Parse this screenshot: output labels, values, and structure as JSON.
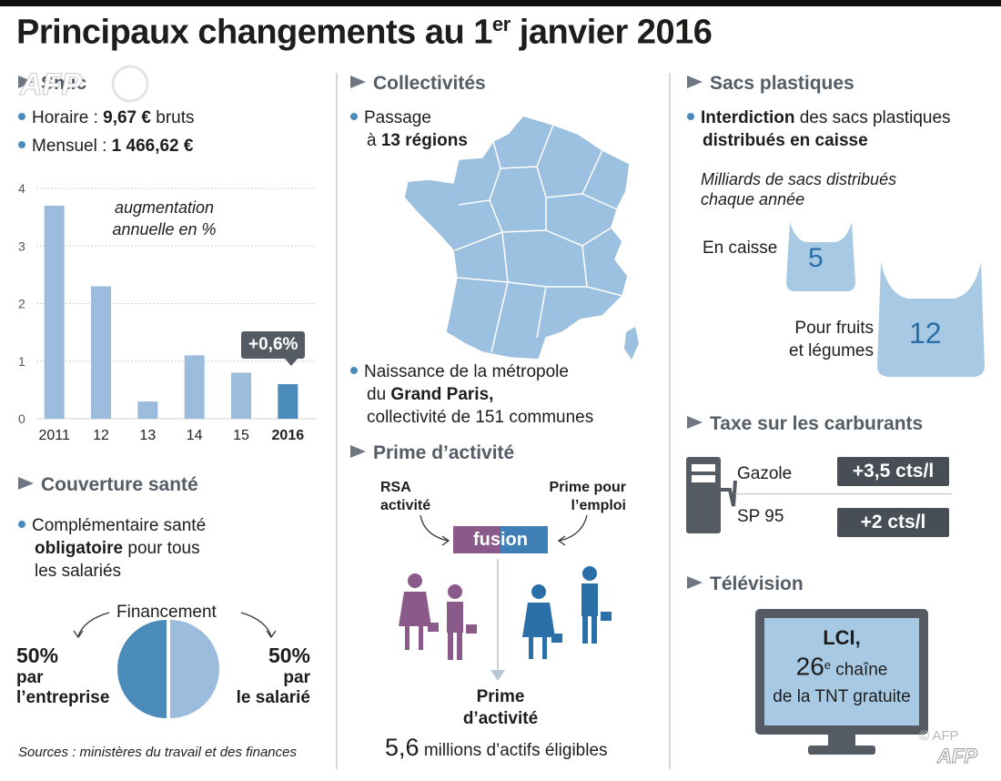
{
  "title": {
    "main": "Principaux changements au 1",
    "sup": "er",
    "rest": " janvier 2016"
  },
  "smic": {
    "heading": "Smic",
    "horaire_label": "Horaire : ",
    "horaire_value": "9,67 €",
    "horaire_unit": " bruts",
    "mensuel_label": "Mensuel : ",
    "mensuel_value": "1 466,62 €"
  },
  "chart_data": {
    "type": "bar",
    "categories": [
      "2011",
      "12",
      "13",
      "14",
      "15",
      "2016"
    ],
    "values": [
      3.7,
      2.3,
      0.3,
      1.1,
      0.8,
      0.6
    ],
    "ylim": [
      0,
      4
    ],
    "yticks": [
      "0",
      "1",
      "2",
      "3",
      "4"
    ],
    "annotation": [
      "augmentation",
      "annuelle en %"
    ],
    "highlight_label": "+0,6%",
    "bar_color": "#9bbcdd",
    "highlight_color": "#4b8bbb",
    "grid": true
  },
  "sante": {
    "heading": "Couverture santé",
    "line1": "Complémentaire santé",
    "line2_bold": "obligatoire",
    "line2_rest": " pour tous",
    "line3": "les salariés",
    "financement": "Financement",
    "left_pct": "50%",
    "left_l1": "par",
    "left_l2": "l’entreprise",
    "right_pct": "50%",
    "right_l1": "par",
    "right_l2": "le salarié",
    "pie": [
      {
        "share": 50,
        "color": "#4b8bbb"
      },
      {
        "share": 50,
        "color": "#9bbcdd"
      }
    ]
  },
  "sources": "Sources : ministères du travail  et des finances",
  "collectivites": {
    "heading": "Collectivités",
    "passage_l1": "Passage",
    "passage_l2_pre": "à ",
    "passage_l2_bold": "13 régions",
    "paris_l1": "Naissance de la métropole",
    "paris_l2_pre": "du ",
    "paris_l2_bold": "Grand Paris,",
    "paris_l3": "collectivité de 151 communes",
    "map_color": "#9bc0e0"
  },
  "prime": {
    "heading": "Prime d’activité",
    "rsa_l1": "RSA",
    "rsa_l2": "activité",
    "ppe_l1": "Prime pour",
    "ppe_l2": "l’emploi",
    "fusion": "fusion",
    "result_l1": "Prime",
    "result_l2": "d’activité",
    "count_value": "5,6",
    "count_text": " millions d’actifs éligibles",
    "purple": "#8a5a8a",
    "blue": "#3f7fb6"
  },
  "sacs": {
    "heading": "Sacs plastiques",
    "l1_bold": "Interdiction",
    "l1_rest": " des sacs plastiques",
    "l2_bold": "distribués en caisse",
    "note_l1": "Milliards de sacs distribués",
    "note_l2": "chaque année",
    "caisse_label": "En caisse",
    "caisse_value": "5",
    "fruits_l1": "Pour fruits",
    "fruits_l2": "et légumes",
    "fruits_value": "12"
  },
  "carburants": {
    "heading": "Taxe sur les carburants",
    "gazole": "Gazole",
    "gazole_value": "+3,5 cts/l",
    "sp95": "SP 95",
    "sp95_value": "+2 cts/l"
  },
  "television": {
    "heading": "Télévision",
    "lci": "LCI,",
    "num": "26",
    "num_sup": "e",
    "chaine": " chaîne",
    "tnt": "de la TNT gratuite"
  },
  "credit": "© AFP",
  "logo": "AFP"
}
